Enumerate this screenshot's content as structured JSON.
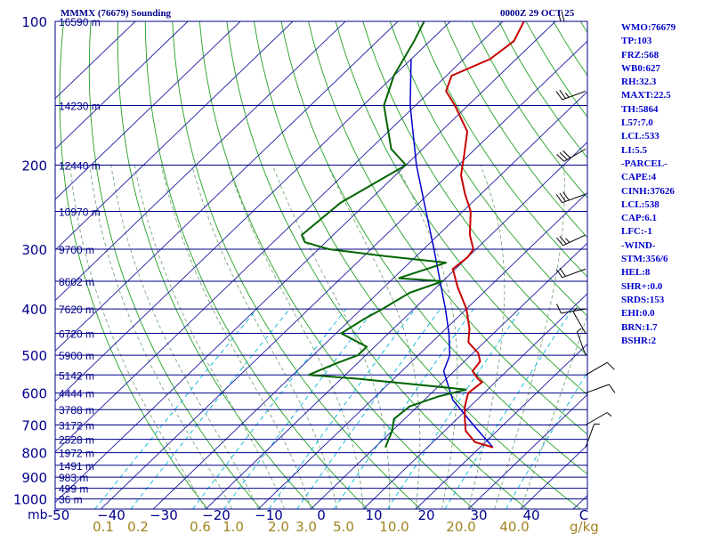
{
  "header": {
    "title": "MMMX (76679) Sounding",
    "time": "0000Z 29 OCT 25"
  },
  "indices": [
    "WMO:76679",
    "TP:103",
    "FRZ:568",
    "WB0:627",
    "RH:32.3",
    "MAXT:22.5",
    "TH:5864",
    "L57:7.0",
    "LCL:533",
    "LI:5.5",
    "-PARCEL-",
    "CAPE:4",
    "CINH:37626",
    "LCL:538",
    "CAP:6.1",
    "LFC:-1",
    "-WIND-",
    "STM:356/6",
    "HEL:8",
    "SHR+:0.0",
    "SRDS:153",
    "EHI:0.0",
    "BRN:1.7",
    "BSHR:2"
  ],
  "colors": {
    "axis_text": "#00008b",
    "index_text": "#0000cd",
    "isobar": "#00008b",
    "isotherm": "#1e1ea0",
    "dry_adiabat": "#22a022",
    "moist_adiabat": "#7aa87a",
    "mixing_ratio": "#00b4dc",
    "temperature": "#c80000",
    "dewpoint": "#006400",
    "parcel": "#0000cd",
    "wind": "#000000",
    "mixing_ratio_labels": "#a0821e"
  },
  "chart_data": {
    "type": "skew-t",
    "title": "MMMX (76679) Sounding",
    "subtitle": "0000Z 29 OCT 25",
    "pressure_unit": "mb",
    "mixing_ratio_unit": "g/kg",
    "pressure_range": [
      1000,
      100
    ],
    "temperature_range": [
      -50,
      50
    ],
    "pressure_labels": [
      {
        "p": 100,
        "label": "100"
      },
      {
        "p": 200,
        "label": "200"
      },
      {
        "p": 300,
        "label": "300"
      },
      {
        "p": 400,
        "label": "400"
      },
      {
        "p": 500,
        "label": "500"
      },
      {
        "p": 600,
        "label": "600"
      },
      {
        "p": 700,
        "label": "700"
      },
      {
        "p": 800,
        "label": "800"
      },
      {
        "p": 900,
        "label": "900"
      },
      {
        "p": 1000,
        "label": "1000"
      }
    ],
    "temperature_ticks": [
      {
        "t": -50,
        "label": "-50"
      },
      {
        "t": -40,
        "label": "−40"
      },
      {
        "t": -30,
        "label": "−30"
      },
      {
        "t": -20,
        "label": "−20"
      },
      {
        "t": -10,
        "label": "−10"
      },
      {
        "t": 0,
        "label": "0"
      },
      {
        "t": 10,
        "label": "10"
      },
      {
        "t": 20,
        "label": "20"
      },
      {
        "t": 30,
        "label": "30"
      },
      {
        "t": 40,
        "label": "40"
      },
      {
        "t": 50,
        "label": "C"
      }
    ],
    "mixing_ratio_lines": [
      {
        "w": 0.1,
        "label": "0.1"
      },
      {
        "w": 0.2,
        "label": "0.2"
      },
      {
        "w": 0.6,
        "label": "0.6"
      },
      {
        "w": 1.0,
        "label": "1.0"
      },
      {
        "w": 2.0,
        "label": "2.0"
      },
      {
        "w": 3.0,
        "label": "3.0"
      },
      {
        "w": 5.0,
        "label": "5.0"
      },
      {
        "w": 10.0,
        "label": "10.0"
      },
      {
        "w": 20.0,
        "label": "20.0"
      },
      {
        "w": 40.0,
        "label": "40.0"
      }
    ],
    "height_labels": [
      {
        "p": 100,
        "label": "16590 m"
      },
      {
        "p": 150,
        "label": "14230 m"
      },
      {
        "p": 200,
        "label": "12440 m"
      },
      {
        "p": 250,
        "label": "10970 m"
      },
      {
        "p": 300,
        "label": "9700 m"
      },
      {
        "p": 350,
        "label": "8602 m"
      },
      {
        "p": 400,
        "label": "7620 m"
      },
      {
        "p": 450,
        "label": "6720 m"
      },
      {
        "p": 500,
        "label": "5900 m"
      },
      {
        "p": 550,
        "label": "5142 m"
      },
      {
        "p": 600,
        "label": "4444 m"
      },
      {
        "p": 650,
        "label": "3788 m"
      },
      {
        "p": 700,
        "label": "3172 m"
      },
      {
        "p": 750,
        "label": "2528 m"
      },
      {
        "p": 800,
        "label": "1972 m"
      },
      {
        "p": 850,
        "label": "1491 m"
      },
      {
        "p": 900,
        "label": "983 m"
      },
      {
        "p": 950,
        "label": "499 m"
      },
      {
        "p": 1000,
        "label": "36 m"
      }
    ],
    "temperature": [
      {
        "p": 780,
        "t": 22.5
      },
      {
        "p": 760,
        "t": 18
      },
      {
        "p": 720,
        "t": 14
      },
      {
        "p": 680,
        "t": 11.5
      },
      {
        "p": 640,
        "t": 9
      },
      {
        "p": 600,
        "t": 7
      },
      {
        "p": 570,
        "t": 7.5
      },
      {
        "p": 560,
        "t": 6
      },
      {
        "p": 540,
        "t": 3.5
      },
      {
        "p": 515,
        "t": 3
      },
      {
        "p": 495,
        "t": 1
      },
      {
        "p": 470,
        "t": -3
      },
      {
        "p": 440,
        "t": -5.5
      },
      {
        "p": 400,
        "t": -10
      },
      {
        "p": 360,
        "t": -16
      },
      {
        "p": 330,
        "t": -20.5
      },
      {
        "p": 312,
        "t": -20
      },
      {
        "p": 300,
        "t": -20.5
      },
      {
        "p": 280,
        "t": -24
      },
      {
        "p": 250,
        "t": -28.5
      },
      {
        "p": 230,
        "t": -33
      },
      {
        "p": 210,
        "t": -37.5
      },
      {
        "p": 190,
        "t": -41
      },
      {
        "p": 170,
        "t": -45
      },
      {
        "p": 150,
        "t": -52.5
      },
      {
        "p": 140,
        "t": -57
      },
      {
        "p": 130,
        "t": -59
      },
      {
        "p": 120,
        "t": -55
      },
      {
        "p": 110,
        "t": -54
      },
      {
        "p": 100,
        "t": -56
      }
    ],
    "dewpoint": [
      {
        "p": 780,
        "t": 2
      },
      {
        "p": 720,
        "t": 0
      },
      {
        "p": 680,
        "t": -2
      },
      {
        "p": 640,
        "t": -1.5
      },
      {
        "p": 610,
        "t": 2
      },
      {
        "p": 590,
        "t": 6
      },
      {
        "p": 560,
        "t": -17
      },
      {
        "p": 550,
        "t": -27
      },
      {
        "p": 520,
        "t": -24
      },
      {
        "p": 500,
        "t": -21.5
      },
      {
        "p": 480,
        "t": -21.5
      },
      {
        "p": 450,
        "t": -29
      },
      {
        "p": 420,
        "t": -27.5
      },
      {
        "p": 400,
        "t": -26
      },
      {
        "p": 370,
        "t": -24
      },
      {
        "p": 350,
        "t": -20
      },
      {
        "p": 345,
        "t": -29
      },
      {
        "p": 320,
        "t": -23
      },
      {
        "p": 310,
        "t": -36
      },
      {
        "p": 300,
        "t": -48
      },
      {
        "p": 290,
        "t": -54
      },
      {
        "p": 280,
        "t": -56
      },
      {
        "p": 240,
        "t": -55
      },
      {
        "p": 200,
        "t": -50
      },
      {
        "p": 185,
        "t": -56
      },
      {
        "p": 150,
        "t": -66
      },
      {
        "p": 130,
        "t": -70
      },
      {
        "p": 110,
        "t": -73
      },
      {
        "p": 100,
        "t": -75
      }
    ],
    "parcel": [
      {
        "p": 780,
        "t": 22.5
      },
      {
        "p": 700,
        "t": 14.3
      },
      {
        "p": 620,
        "t": 5.4
      },
      {
        "p": 540,
        "t": -2
      },
      {
        "p": 500,
        "t": -4
      },
      {
        "p": 450,
        "t": -8.5
      },
      {
        "p": 400,
        "t": -14
      },
      {
        "p": 350,
        "t": -20.5
      },
      {
        "p": 300,
        "t": -28
      },
      {
        "p": 250,
        "t": -37
      },
      {
        "p": 200,
        "t": -48
      },
      {
        "p": 150,
        "t": -61
      },
      {
        "p": 120,
        "t": -70
      }
    ],
    "wind_barbs": [
      {
        "p": 100,
        "dir": 270,
        "kt": 20
      },
      {
        "p": 140,
        "dir": 250,
        "kt": 25
      },
      {
        "p": 185,
        "dir": 240,
        "kt": 30
      },
      {
        "p": 230,
        "dir": 250,
        "kt": 30
      },
      {
        "p": 280,
        "dir": 245,
        "kt": 25
      },
      {
        "p": 330,
        "dir": 250,
        "kt": 20
      },
      {
        "p": 400,
        "dir": 260,
        "kt": 10
      },
      {
        "p": 450,
        "dir": 330,
        "kt": 5
      },
      {
        "p": 500,
        "dir": 340,
        "kt": 5
      },
      {
        "p": 550,
        "dir": 60,
        "kt": 10
      },
      {
        "p": 600,
        "dir": 70,
        "kt": 10
      },
      {
        "p": 700,
        "dir": 60,
        "kt": 5
      },
      {
        "p": 780,
        "dir": 20,
        "kt": 5
      }
    ]
  }
}
